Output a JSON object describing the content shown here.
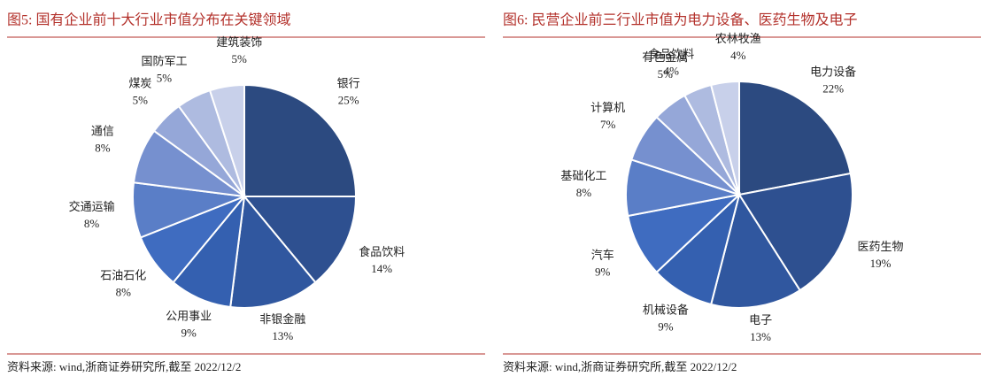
{
  "chart_data": [
    {
      "type": "pie",
      "title": "图5:  国有企业前十大行业市值分布在关键领域",
      "categories": [
        "银行",
        "食品饮料",
        "非银金融",
        "公用事业",
        "石油石化",
        "交通运输",
        "通信",
        "煤炭",
        "国防军工",
        "建筑装饰"
      ],
      "values": [
        25,
        14,
        13,
        9,
        8,
        8,
        8,
        5,
        5,
        5
      ],
      "value_labels": [
        "25%",
        "14%",
        "13%",
        "9%",
        "8%",
        "8%",
        "8%",
        "5%",
        "5%",
        "5%"
      ],
      "colors": [
        "#2c4a80",
        "#2e5090",
        "#30579f",
        "#3460b0",
        "#3f6cc0",
        "#5a7ec7",
        "#7690cf",
        "#95a7d8",
        "#aebbe0",
        "#c8d0ea"
      ],
      "source": "资料来源:  wind,浙商证券研究所,截至 2022/12/2"
    },
    {
      "type": "pie",
      "title": "图6:  民营企业前三行业市值为电力设备、医药生物及电子",
      "categories": [
        "电力设备",
        "医药生物",
        "电子",
        "机械设备",
        "汽车",
        "基础化工",
        "计算机",
        "有色金属",
        "食品饮料",
        "农林牧渔"
      ],
      "values": [
        22,
        19,
        13,
        9,
        9,
        8,
        7,
        5,
        4,
        4
      ],
      "value_labels": [
        "22%",
        "19%",
        "13%",
        "9%",
        "9%",
        "8%",
        "7%",
        "5%",
        "4%",
        "4%"
      ],
      "colors": [
        "#2c4a80",
        "#2e5090",
        "#30579f",
        "#3460b0",
        "#3f6cc0",
        "#5a7ec7",
        "#7690cf",
        "#95a7d8",
        "#aebbe0",
        "#c8d0ea"
      ],
      "source": "资料来源:  wind,浙商证券研究所,截至 2022/12/2"
    }
  ]
}
